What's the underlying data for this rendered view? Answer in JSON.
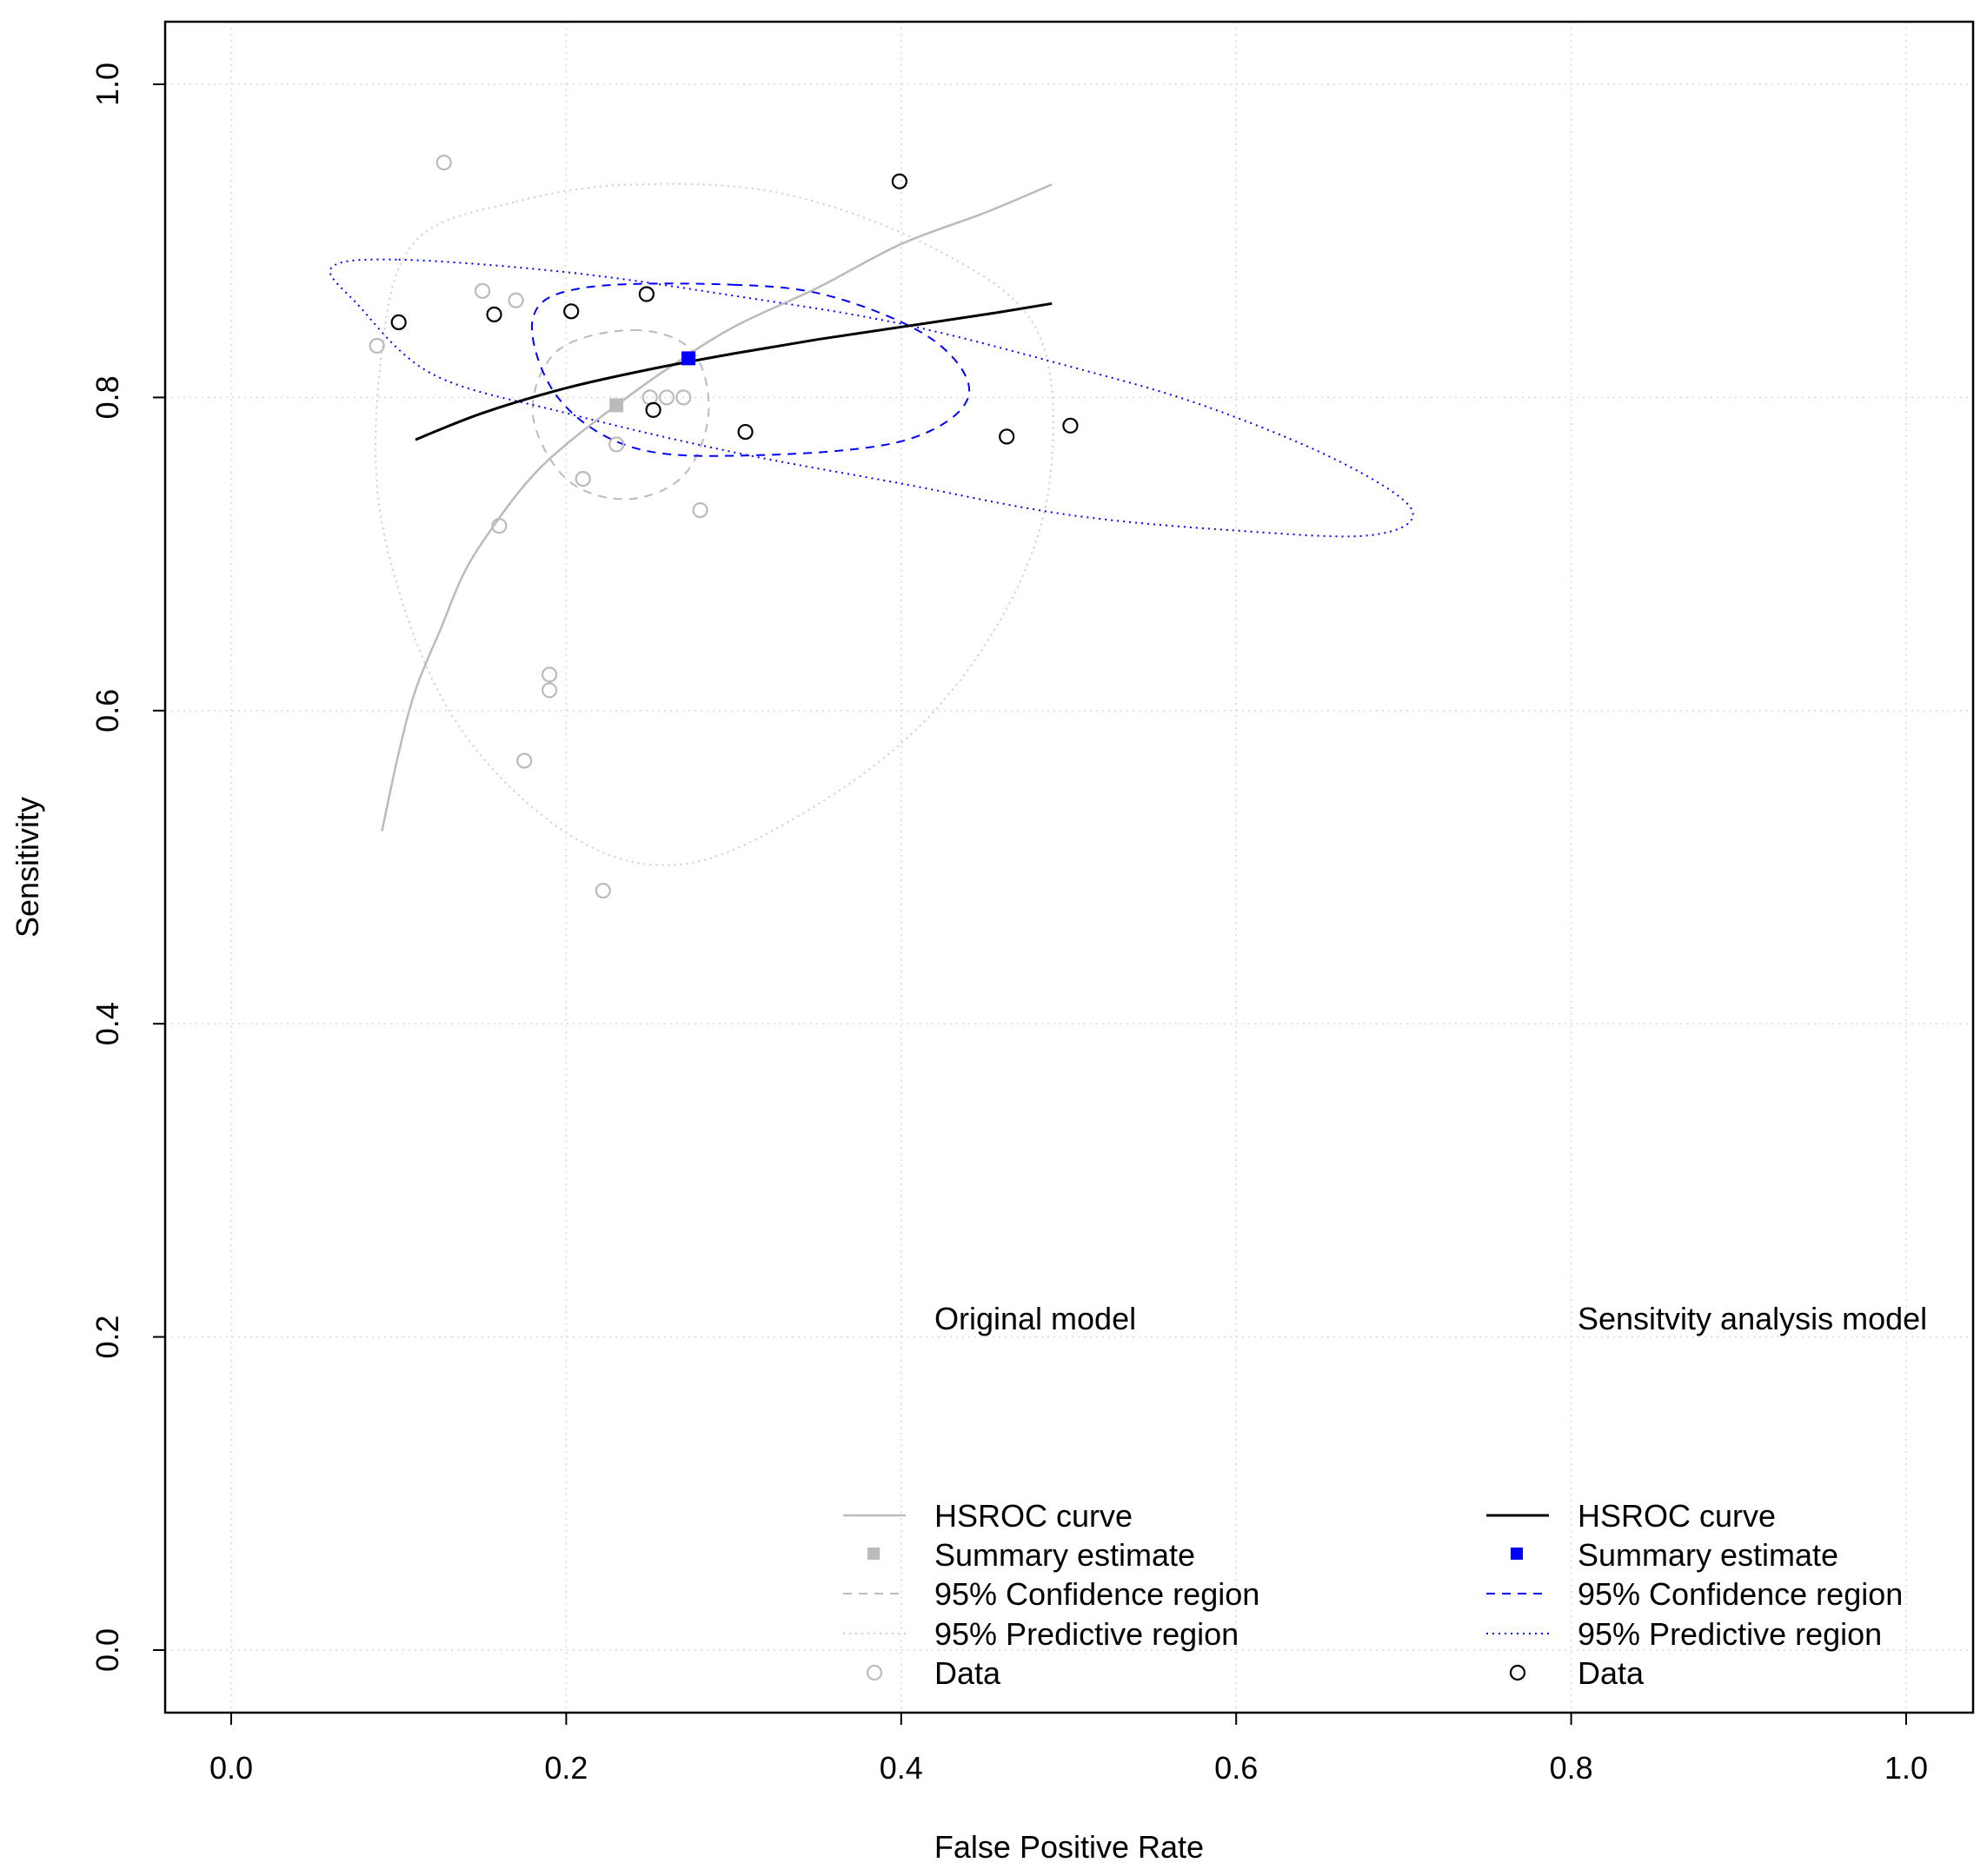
{
  "chart_data": {
    "type": "scatter",
    "xlabel": "False Positive Rate",
    "ylabel": "Sensitivity",
    "xlim": [
      0,
      1
    ],
    "ylim": [
      0,
      1
    ],
    "xticks": [
      "0.0",
      "0.2",
      "0.4",
      "0.6",
      "0.8",
      "1.0"
    ],
    "yticks": [
      "0.0",
      "0.2",
      "0.4",
      "0.6",
      "0.8",
      "1.0"
    ],
    "grid": true,
    "colors": {
      "original": "#bbbbbb",
      "original_light": "#cccccc",
      "sensitivity": "#000000",
      "sensitivity_blue": "#0000ff"
    },
    "original_model": {
      "name": "Original model",
      "summary": {
        "x": 0.23,
        "y": 0.795
      },
      "hsroc_curve": [
        [
          0.09,
          0.523
        ],
        [
          0.1,
          0.573
        ],
        [
          0.11,
          0.613
        ],
        [
          0.125,
          0.652
        ],
        [
          0.14,
          0.69
        ],
        [
          0.16,
          0.723
        ],
        [
          0.18,
          0.75
        ],
        [
          0.2,
          0.77
        ],
        [
          0.23,
          0.795
        ],
        [
          0.26,
          0.818
        ],
        [
          0.3,
          0.845
        ],
        [
          0.35,
          0.87
        ],
        [
          0.4,
          0.898
        ],
        [
          0.45,
          0.918
        ],
        [
          0.49,
          0.936
        ]
      ],
      "confidence_region": [
        [
          0.24,
          0.843
        ],
        [
          0.275,
          0.83
        ],
        [
          0.285,
          0.79
        ],
        [
          0.27,
          0.75
        ],
        [
          0.236,
          0.735
        ],
        [
          0.2,
          0.748
        ],
        [
          0.18,
          0.79
        ],
        [
          0.195,
          0.83
        ]
      ],
      "predictive_region": [
        [
          0.17,
          0.925
        ],
        [
          0.24,
          0.936
        ],
        [
          0.33,
          0.93
        ],
        [
          0.42,
          0.895
        ],
        [
          0.48,
          0.845
        ],
        [
          0.49,
          0.76
        ],
        [
          0.47,
          0.68
        ],
        [
          0.42,
          0.6
        ],
        [
          0.35,
          0.54
        ],
        [
          0.27,
          0.502
        ],
        [
          0.2,
          0.522
        ],
        [
          0.13,
          0.6
        ],
        [
          0.09,
          0.72
        ],
        [
          0.09,
          0.83
        ],
        [
          0.11,
          0.9
        ]
      ],
      "data": [
        [
          0.127,
          0.95
        ],
        [
          0.15,
          0.868
        ],
        [
          0.17,
          0.862
        ],
        [
          0.087,
          0.833
        ],
        [
          0.25,
          0.8
        ],
        [
          0.26,
          0.8
        ],
        [
          0.27,
          0.8
        ],
        [
          0.23,
          0.77
        ],
        [
          0.21,
          0.748
        ],
        [
          0.28,
          0.728
        ],
        [
          0.16,
          0.718
        ],
        [
          0.19,
          0.623
        ],
        [
          0.19,
          0.613
        ],
        [
          0.175,
          0.568
        ],
        [
          0.222,
          0.485
        ]
      ]
    },
    "sensitivity_model": {
      "name": "Sensitvity analysis model",
      "summary": {
        "x": 0.273,
        "y": 0.825
      },
      "hsroc_curve": [
        [
          0.11,
          0.773
        ],
        [
          0.15,
          0.79
        ],
        [
          0.2,
          0.806
        ],
        [
          0.25,
          0.818
        ],
        [
          0.3,
          0.828
        ],
        [
          0.35,
          0.837
        ],
        [
          0.4,
          0.845
        ],
        [
          0.45,
          0.853
        ],
        [
          0.49,
          0.86
        ]
      ],
      "confidence_region": [
        [
          0.3,
          0.872
        ],
        [
          0.36,
          0.864
        ],
        [
          0.42,
          0.836
        ],
        [
          0.44,
          0.8
        ],
        [
          0.4,
          0.772
        ],
        [
          0.31,
          0.763
        ],
        [
          0.24,
          0.768
        ],
        [
          0.195,
          0.8
        ],
        [
          0.18,
          0.85
        ],
        [
          0.21,
          0.87
        ]
      ],
      "predictive_region": [
        [
          0.1,
          0.888
        ],
        [
          0.2,
          0.88
        ],
        [
          0.3,
          0.865
        ],
        [
          0.4,
          0.847
        ],
        [
          0.5,
          0.82
        ],
        [
          0.58,
          0.795
        ],
        [
          0.66,
          0.76
        ],
        [
          0.705,
          0.728
        ],
        [
          0.68,
          0.712
        ],
        [
          0.6,
          0.715
        ],
        [
          0.5,
          0.725
        ],
        [
          0.4,
          0.745
        ],
        [
          0.3,
          0.765
        ],
        [
          0.2,
          0.79
        ],
        [
          0.12,
          0.815
        ],
        [
          0.075,
          0.86
        ],
        [
          0.06,
          0.883
        ]
      ],
      "data": [
        [
          0.1,
          0.848
        ],
        [
          0.157,
          0.853
        ],
        [
          0.203,
          0.855
        ],
        [
          0.248,
          0.866
        ],
        [
          0.399,
          0.938
        ],
        [
          0.252,
          0.792
        ],
        [
          0.307,
          0.778
        ],
        [
          0.463,
          0.775
        ],
        [
          0.501,
          0.782
        ]
      ]
    },
    "legend": {
      "placement": "bottom-right",
      "original": {
        "title": "Original model",
        "entries": [
          "HSROC curve",
          "Summary estimate",
          "95% Confidence region",
          "95% Predictive region",
          "Data"
        ]
      },
      "sensitivity": {
        "title": "Sensitvity analysis model",
        "entries": [
          "HSROC curve",
          "Summary estimate",
          "95% Confidence region",
          "95% Predictive region",
          "Data"
        ]
      }
    }
  }
}
